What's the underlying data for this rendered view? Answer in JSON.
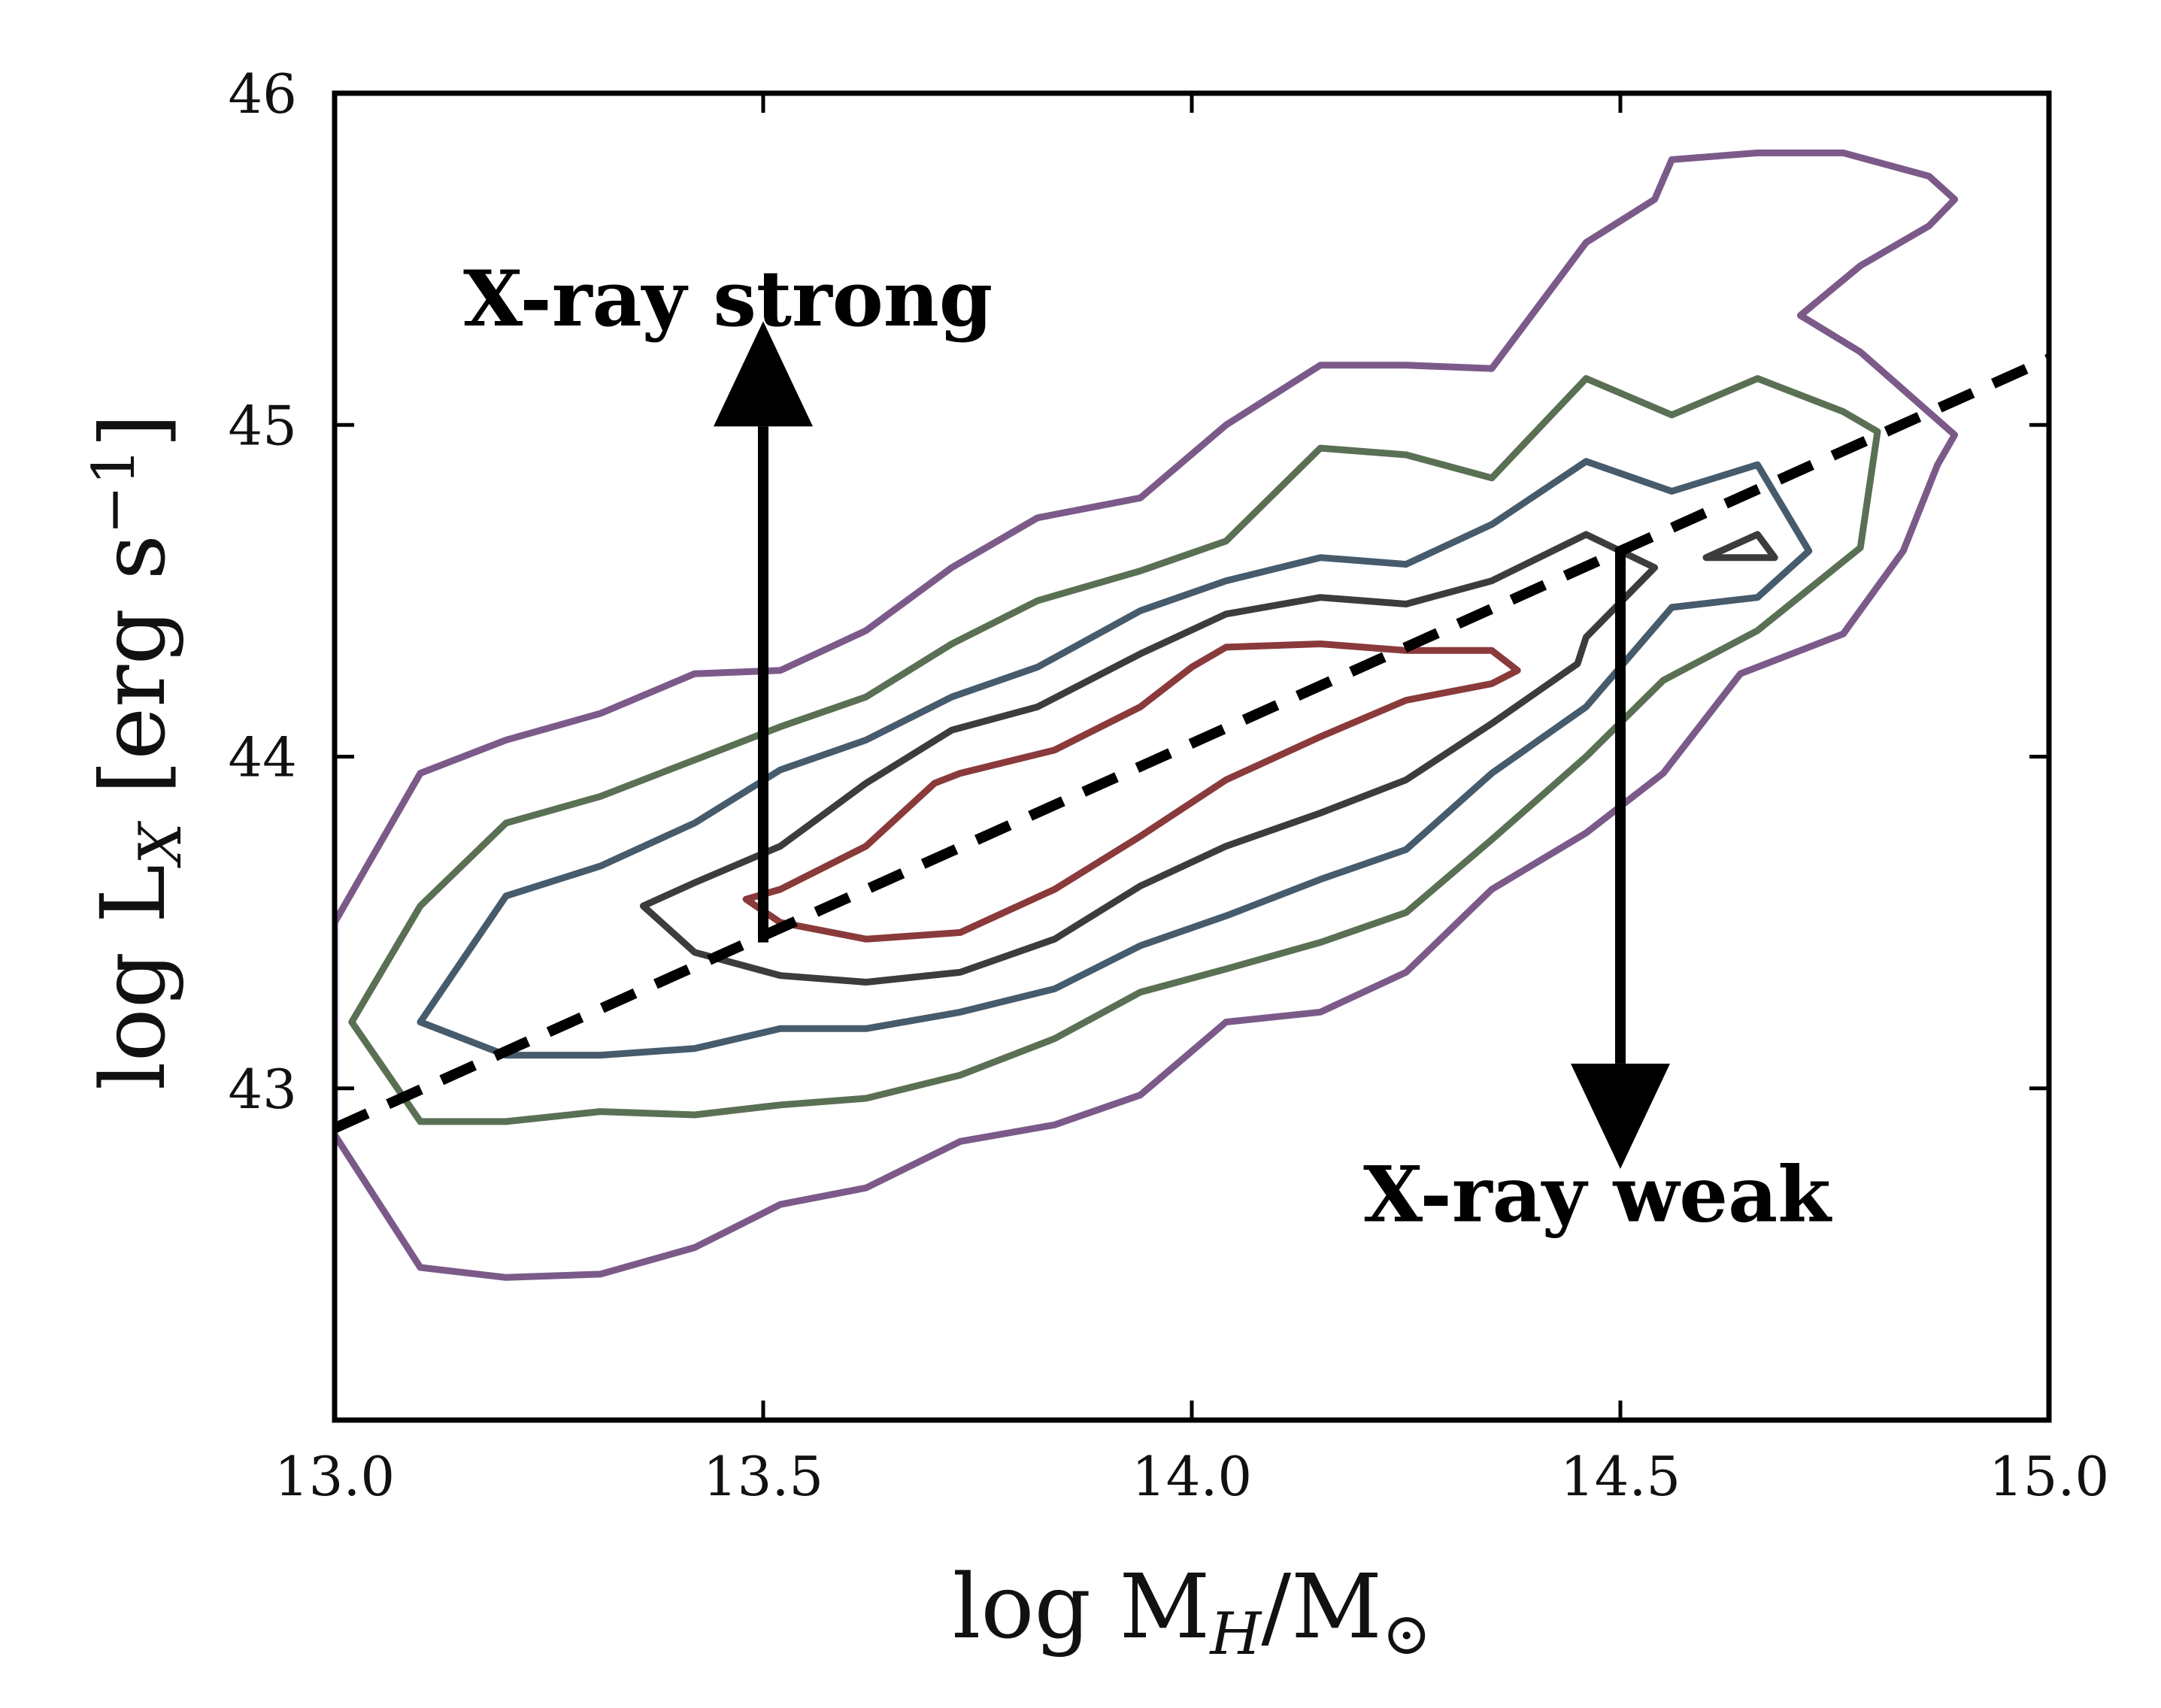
{
  "chart_data": {
    "type": "line",
    "title": "",
    "xlabel": {
      "prefix": "log M",
      "sub": "H",
      "mid": "/M",
      "sub2": "⊙"
    },
    "ylabel": {
      "prefix": "log L",
      "sub": "X",
      "mid": " [erg s",
      "sup": "−1",
      "suffix": "]"
    },
    "xlim": [
      13.0,
      15.0
    ],
    "ylim": [
      42.0,
      46.0
    ],
    "xticks": [
      13.0,
      13.5,
      14.0,
      14.5,
      15.0
    ],
    "xtick_labels": [
      "13.0",
      "13.5",
      "14.0",
      "14.5",
      "15.0"
    ],
    "yticks": [
      43,
      44,
      45,
      46
    ],
    "ytick_labels": [
      "43",
      "44",
      "45",
      "46"
    ],
    "grid": false,
    "annotations": {
      "strong": {
        "text": "X-ray strong",
        "x": 13.15,
        "y": 45.3
      },
      "weak": {
        "text": "X-ray weak",
        "x": 14.2,
        "y": 42.6
      }
    },
    "arrows": [
      {
        "name": "strong-arrow",
        "x": 13.5,
        "y_start": 43.44,
        "y_end": 45.12
      },
      {
        "name": "weak-arrow",
        "x": 14.5,
        "y_start": 44.63,
        "y_end": 42.95
      }
    ],
    "fit_line": {
      "style": "dashed",
      "color": "#000000",
      "points": [
        [
          13.0,
          42.88
        ],
        [
          15.0,
          45.2
        ]
      ]
    },
    "contours": [
      {
        "level": 1,
        "color": "#7b5a8a",
        "points": [
          [
            13.0,
            43.5
          ],
          [
            13.1,
            43.95
          ],
          [
            13.2,
            44.05
          ],
          [
            13.31,
            44.13
          ],
          [
            13.42,
            44.25
          ],
          [
            13.52,
            44.26
          ],
          [
            13.62,
            44.38
          ],
          [
            13.72,
            44.57
          ],
          [
            13.82,
            44.72
          ],
          [
            13.94,
            44.78
          ],
          [
            14.04,
            45.0
          ],
          [
            14.15,
            45.18
          ],
          [
            14.25,
            45.18
          ],
          [
            14.35,
            45.17
          ],
          [
            14.46,
            45.55
          ],
          [
            14.54,
            45.68
          ],
          [
            14.56,
            45.8
          ],
          [
            14.66,
            45.82
          ],
          [
            14.76,
            45.82
          ],
          [
            14.86,
            45.75
          ],
          [
            14.89,
            45.68
          ],
          [
            14.86,
            45.6
          ],
          [
            14.78,
            45.48
          ],
          [
            14.71,
            45.33
          ],
          [
            14.78,
            45.22
          ],
          [
            14.89,
            44.97
          ],
          [
            14.87,
            44.88
          ],
          [
            14.83,
            44.62
          ],
          [
            14.76,
            44.37
          ],
          [
            14.64,
            44.25
          ],
          [
            14.55,
            43.95
          ],
          [
            14.46,
            43.77
          ],
          [
            14.35,
            43.6
          ],
          [
            14.25,
            43.35
          ],
          [
            14.15,
            43.23
          ],
          [
            14.04,
            43.2
          ],
          [
            13.94,
            42.98
          ],
          [
            13.84,
            42.89
          ],
          [
            13.73,
            42.84
          ],
          [
            13.62,
            42.7
          ],
          [
            13.52,
            42.65
          ],
          [
            13.42,
            42.52
          ],
          [
            13.31,
            42.44
          ],
          [
            13.2,
            42.43
          ],
          [
            13.1,
            42.46
          ],
          [
            13.0,
            42.86
          ]
        ]
      },
      {
        "level": 2,
        "color": "#5a7054",
        "points": [
          [
            13.02,
            43.2
          ],
          [
            13.1,
            43.55
          ],
          [
            13.2,
            43.8
          ],
          [
            13.31,
            43.88
          ],
          [
            13.42,
            43.99
          ],
          [
            13.52,
            44.09
          ],
          [
            13.62,
            44.18
          ],
          [
            13.72,
            44.34
          ],
          [
            13.82,
            44.47
          ],
          [
            13.94,
            44.56
          ],
          [
            14.04,
            44.65
          ],
          [
            14.15,
            44.93
          ],
          [
            14.25,
            44.91
          ],
          [
            14.35,
            44.84
          ],
          [
            14.46,
            45.14
          ],
          [
            14.56,
            45.03
          ],
          [
            14.66,
            45.14
          ],
          [
            14.76,
            45.04
          ],
          [
            14.8,
            44.98
          ],
          [
            14.78,
            44.63
          ],
          [
            14.66,
            44.38
          ],
          [
            14.55,
            44.23
          ],
          [
            14.46,
            44.0
          ],
          [
            14.35,
            43.75
          ],
          [
            14.25,
            43.53
          ],
          [
            14.15,
            43.44
          ],
          [
            14.04,
            43.36
          ],
          [
            13.94,
            43.29
          ],
          [
            13.84,
            43.15
          ],
          [
            13.73,
            43.04
          ],
          [
            13.62,
            42.97
          ],
          [
            13.52,
            42.95
          ],
          [
            13.42,
            42.92
          ],
          [
            13.31,
            42.93
          ],
          [
            13.2,
            42.9
          ],
          [
            13.1,
            42.9
          ]
        ]
      },
      {
        "level": 3,
        "color": "#465b6c",
        "points": [
          [
            13.1,
            43.2
          ],
          [
            13.2,
            43.58
          ],
          [
            13.31,
            43.67
          ],
          [
            13.42,
            43.8
          ],
          [
            13.52,
            43.96
          ],
          [
            13.62,
            44.05
          ],
          [
            13.72,
            44.18
          ],
          [
            13.82,
            44.27
          ],
          [
            13.94,
            44.44
          ],
          [
            14.04,
            44.53
          ],
          [
            14.15,
            44.6
          ],
          [
            14.25,
            44.58
          ],
          [
            14.35,
            44.7
          ],
          [
            14.46,
            44.89
          ],
          [
            14.56,
            44.8
          ],
          [
            14.66,
            44.88
          ],
          [
            14.72,
            44.62
          ],
          [
            14.66,
            44.48
          ],
          [
            14.56,
            44.45
          ],
          [
            14.46,
            44.15
          ],
          [
            14.35,
            43.95
          ],
          [
            14.25,
            43.72
          ],
          [
            14.15,
            43.63
          ],
          [
            14.04,
            43.52
          ],
          [
            13.94,
            43.43
          ],
          [
            13.84,
            43.3
          ],
          [
            13.73,
            43.23
          ],
          [
            13.62,
            43.18
          ],
          [
            13.52,
            43.18
          ],
          [
            13.42,
            43.12
          ],
          [
            13.31,
            43.1
          ],
          [
            13.2,
            43.1
          ]
        ]
      },
      {
        "level": 4,
        "color": "#3c3c3c",
        "points": [
          [
            13.36,
            43.55
          ],
          [
            13.42,
            43.62
          ],
          [
            13.52,
            43.73
          ],
          [
            13.62,
            43.92
          ],
          [
            13.72,
            44.08
          ],
          [
            13.82,
            44.15
          ],
          [
            13.94,
            44.31
          ],
          [
            14.04,
            44.43
          ],
          [
            14.15,
            44.48
          ],
          [
            14.25,
            44.46
          ],
          [
            14.35,
            44.53
          ],
          [
            14.46,
            44.67
          ],
          [
            14.5,
            44.62
          ],
          [
            14.54,
            44.57
          ],
          [
            14.46,
            44.36
          ],
          [
            14.45,
            44.28
          ],
          [
            14.35,
            44.1
          ],
          [
            14.25,
            43.93
          ],
          [
            14.15,
            43.83
          ],
          [
            14.04,
            43.73
          ],
          [
            13.94,
            43.61
          ],
          [
            13.84,
            43.45
          ],
          [
            13.73,
            43.35
          ],
          [
            13.62,
            43.32
          ],
          [
            13.52,
            43.34
          ],
          [
            13.42,
            43.41
          ]
        ]
      },
      {
        "level": 4,
        "color": "#3c3c3c",
        "points": [
          [
            14.6,
            44.6
          ],
          [
            14.66,
            44.67
          ],
          [
            14.68,
            44.6
          ]
        ]
      },
      {
        "level": 5,
        "color": "#8a3a3a",
        "points": [
          [
            13.48,
            43.57
          ],
          [
            13.52,
            43.6
          ],
          [
            13.62,
            43.73
          ],
          [
            13.7,
            43.92
          ],
          [
            13.73,
            43.95
          ],
          [
            13.84,
            44.02
          ],
          [
            13.94,
            44.15
          ],
          [
            14.0,
            44.27
          ],
          [
            14.04,
            44.33
          ],
          [
            14.15,
            44.34
          ],
          [
            14.25,
            44.32
          ],
          [
            14.35,
            44.32
          ],
          [
            14.38,
            44.26
          ],
          [
            14.35,
            44.22
          ],
          [
            14.25,
            44.17
          ],
          [
            14.15,
            44.06
          ],
          [
            14.04,
            43.93
          ],
          [
            13.94,
            43.76
          ],
          [
            13.84,
            43.6
          ],
          [
            13.73,
            43.47
          ],
          [
            13.62,
            43.45
          ],
          [
            13.52,
            43.5
          ]
        ]
      }
    ]
  }
}
